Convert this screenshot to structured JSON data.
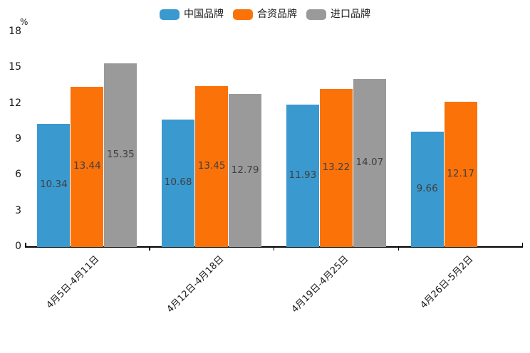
{
  "chart_data": {
    "type": "bar",
    "title": "",
    "unit_label": "%",
    "categories": [
      "4月5日-4月11日",
      "4月12日-4月18日",
      "4月19日-4月25日",
      "4月26日-5月2日"
    ],
    "series": [
      {
        "name": "中国品牌",
        "color": "#3A99CE",
        "values": [
          10.34,
          10.68,
          11.93,
          9.66
        ]
      },
      {
        "name": "合资品牌",
        "color": "#FB7209",
        "values": [
          13.44,
          13.45,
          13.22,
          12.17
        ]
      },
      {
        "name": "进口品牌",
        "color": "#9A9A9A",
        "values": [
          15.35,
          12.79,
          14.07,
          null
        ]
      }
    ],
    "y_ticks": [
      18,
      15,
      12,
      9,
      6,
      3,
      0
    ],
    "ylim": [
      0,
      18
    ],
    "grid": false,
    "legend_position": "top-center",
    "value_label_position": "inside-center",
    "x_label_rotation_deg": 45
  },
  "colors": {
    "background": "#FFFFFF",
    "axis_line": "#000000",
    "tick_label": "#1A1A1A",
    "value_label": "#404040"
  }
}
